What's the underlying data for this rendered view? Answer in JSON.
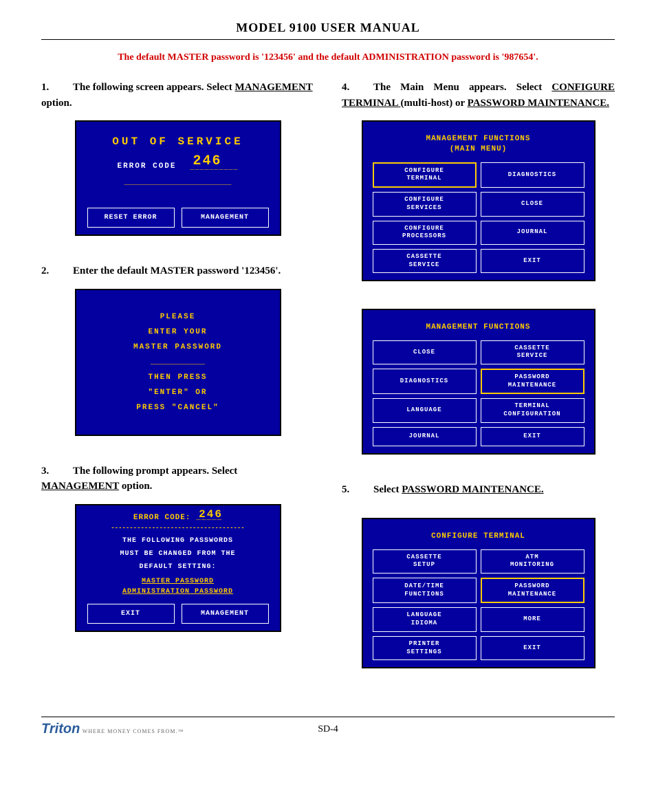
{
  "header": {
    "title": "MODEL 9100 USER MANUAL"
  },
  "notice": "The default MASTER password is '123456' and the default ADMINISTRATION password is '987654'.",
  "left": {
    "step1": {
      "num": "1.",
      "a": "The following screen appears.  Select ",
      "b": "MANAGEMENT",
      "c": " option."
    },
    "screen1": {
      "title": "OUT OF SERVICE",
      "label": "ERROR CODE",
      "value": "246",
      "underline": "__________",
      "dash": "__________________________",
      "btn1": "RESET ERROR",
      "btn2": "MANAGEMENT"
    },
    "step2": {
      "num": "2.",
      "a": "Enter the default MASTER password '123456'."
    },
    "screen2": {
      "l1": "PLEASE",
      "l2": "ENTER YOUR",
      "l3": "MASTER PASSWORD",
      "dash": "____________",
      "l4": "THEN PRESS",
      "l5": "\"ENTER\" OR",
      "l6": "PRESS \"CANCEL\""
    },
    "step3": {
      "num": "3.",
      "a": "The following prompt appears.  Select ",
      "b": "MANAGEMENT",
      "c": "  option."
    },
    "screen3": {
      "err_label": "ERROR CODE:",
      "err_val": "246",
      "err_und": "_____",
      "dash": "------------------------------------",
      "l1": "THE FOLLOWING PASSWORDS",
      "l2": "MUST BE CHANGED FROM THE",
      "l3": "DEFAULT SETTING:",
      "p1": "MASTER PASSWORD",
      "p2": "ADMINISTRATION PASSWORD",
      "btn1": "EXIT",
      "btn2": "MANAGEMENT"
    }
  },
  "right": {
    "step4": {
      "num": "4.",
      "a": "The Main Menu appears.  Select ",
      "b": "CONFIGURE TERMINAL ",
      "c": "(multi-host) or ",
      "d": "PASSWORD MAINTENANCE."
    },
    "screen4": {
      "title1": "MANAGEMENT FUNCTIONS",
      "title2": "(MAIN MENU)",
      "c1": "CONFIGURE\nTERMINAL",
      "c2": "DIAGNOSTICS",
      "c3": "CONFIGURE\nSERVICES",
      "c4": "CLOSE",
      "c5": "CONFIGURE\nPROCESSORS",
      "c6": "JOURNAL",
      "c7": "CASSETTE\nSERVICE",
      "c8": "EXIT"
    },
    "screen4b": {
      "title": "MANAGEMENT FUNCTIONS",
      "c1": "CLOSE",
      "c2": "CASSETTE\nSERVICE",
      "c3": "DIAGNOSTICS",
      "c4": "PASSWORD\nMAINTENANCE",
      "c5": "LANGUAGE",
      "c6": "TERMINAL\nCONFIGURATION",
      "c7": "JOURNAL",
      "c8": "EXIT"
    },
    "step5": {
      "num": "5.",
      "a": "Select ",
      "b": "PASSWORD MAINTENANCE."
    },
    "screen5": {
      "title": "CONFIGURE TERMINAL",
      "c1": "CASSETTE\nSETUP",
      "c2": "ATM\nMONITORING",
      "c3": "DATE/TIME\nFUNCTIONS",
      "c4": "PASSWORD\nMAINTENANCE",
      "c5": "LANGUAGE\nIDIOMA",
      "c6": "MORE",
      "c7": "PRINTER\nSETTINGS",
      "c8": "EXIT"
    }
  },
  "footer": {
    "logo": "Triton",
    "tagline": "WHERE MONEY COMES FROM.™",
    "page": "SD-4"
  },
  "colors": {
    "atm_bg": "#0400a0",
    "atm_yellow": "#ffcc00",
    "red": "#d10000",
    "logo": "#2a5c9a"
  }
}
